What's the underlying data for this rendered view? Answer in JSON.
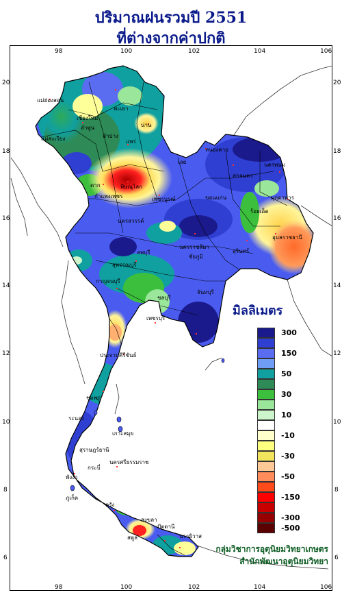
{
  "title": {
    "line1": "ปริมาณฝนรวมปี  2551",
    "line2": "ที่ต่างจากค่าปกติ"
  },
  "axes": {
    "x_ticks": [
      "98",
      "100",
      "102",
      "104",
      "106"
    ],
    "y_ticks": [
      "20",
      "18",
      "16",
      "14",
      "12",
      "10",
      "8",
      "6"
    ]
  },
  "legend": {
    "title": "มิลลิเมตร",
    "items": [
      {
        "color": "#1a1a8c",
        "label": "300"
      },
      {
        "color": "#2f3fd1",
        "label": ""
      },
      {
        "color": "#5a6cf0",
        "label": "150"
      },
      {
        "color": "#6f9cf5",
        "label": ""
      },
      {
        "color": "#10a0a0",
        "label": "50"
      },
      {
        "color": "#2e8b57",
        "label": ""
      },
      {
        "color": "#3cbf3c",
        "label": "30"
      },
      {
        "color": "#9ae69a",
        "label": ""
      },
      {
        "color": "#ccf5cc",
        "label": "10"
      },
      {
        "color": "#ffffff",
        "label": ""
      },
      {
        "color": "#ffffcc",
        "label": "-10"
      },
      {
        "color": "#ffff80",
        "label": ""
      },
      {
        "color": "#f2e45c",
        "label": "-30"
      },
      {
        "color": "#ffc896",
        "label": ""
      },
      {
        "color": "#ff8c5a",
        "label": "-50"
      },
      {
        "color": "#ff4a1a",
        "label": ""
      },
      {
        "color": "#ff0000",
        "label": "-150"
      },
      {
        "color": "#c80000",
        "label": ""
      },
      {
        "color": "#960000",
        "label": "-300"
      },
      {
        "color": "#5a0000",
        "label": "-500"
      }
    ]
  },
  "places": {
    "maehongson": "แม่ฮ่องสอน",
    "chiangmai": "เชียงใหม่",
    "lamphun": "ลำพูน",
    "lampang": "ลำปาง",
    "phrae": "แพร่",
    "nan": "น่าน",
    "phayao": "พะเยา",
    "maesariang": "แม่สะเรียง",
    "tak": "ตาก",
    "phitsanulok": "พิษณุโลก",
    "kamphaengphet": "กำแพงเพชร",
    "phetchabun": "เพชรบูรณ์",
    "nakhonsawan": "นครสวรรค์",
    "nongkhai": "หนองคาย",
    "sakonnakhon": "สกลนคร",
    "nakhonphanom": "นครพนม",
    "mukdahan": "มุกดาหาร",
    "loei": "เลย",
    "khonkaen": "ขอนแก่น",
    "roiet": "ร้อยเอ็ด",
    "ubon": "อุบลราชธานี",
    "nakhonratchasima": "นครราชสีมา",
    "chaiyaphum": "ชัยภูมิ",
    "surin": "สุรินทร์",
    "lopburi": "ลพบุรี",
    "suphanburi": "สุพรรณบุรี",
    "kanchanaburi": "กาญจนบุรี",
    "chonburi": "ชลบุรี",
    "chanthaburi": "จันทบุรี",
    "phetchaburi": "เพชรบุรี",
    "prachuap": "ประจวบคีรีขันธ์",
    "chumphon": "ชุมพร",
    "ranong": "ระนอง",
    "suratthani": "สุราษฎร์ธานี",
    "nakhonsithammarat": "นครศรีธรรมราช",
    "phuket": "ภูเก็ต",
    "trang": "ตรัง",
    "songkhla": "สงขลา",
    "pattani": "ปัตตานี",
    "narathiwat": "นราธิวาส",
    "satun": "สตูล",
    "krabi": "กระบี่",
    "phangnga": "พังงา",
    "samui": "เกาะสมุย"
  },
  "credit": {
    "line1": "กลุ่มวิชาการอุตุนิยมวิทยาเกษตร",
    "line2": "สำนักพัฒนาอุตุนิยมวิทยา"
  }
}
